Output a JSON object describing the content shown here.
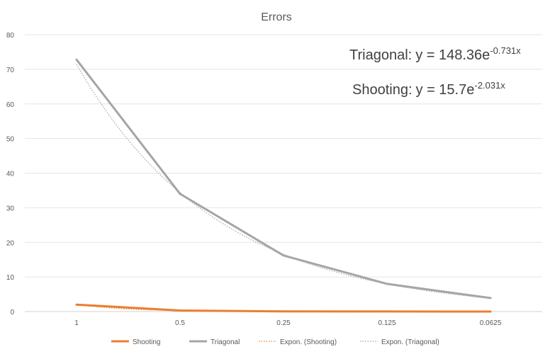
{
  "chart_data": {
    "type": "line",
    "title": "Errors",
    "xlabel": "",
    "ylabel": "",
    "categories": [
      "1",
      "0.5",
      "0.25",
      "0.125",
      "0.0625"
    ],
    "ylim": [
      0,
      80
    ],
    "yticks": [
      "0",
      "10",
      "20",
      "30",
      "40",
      "50",
      "60",
      "70",
      "80"
    ],
    "grid": true,
    "legend_position": "bottom",
    "series": [
      {
        "name": "Shooting",
        "values": [
          2.0,
          0.3,
          0.05,
          0.02,
          0.01
        ],
        "color": "#ED7D31",
        "style": "solid"
      },
      {
        "name": "Triagonal",
        "values": [
          72.8,
          34.0,
          16.2,
          8.0,
          3.9
        ],
        "color": "#A5A5A5",
        "style": "solid"
      }
    ],
    "trendlines": [
      {
        "name": "Expon. (Shooting)",
        "of": "Shooting",
        "a": 15.7,
        "b": -2.031,
        "color": "#ED7D31",
        "style": "dotted"
      },
      {
        "name": "Expon. (Triagonal)",
        "of": "Triagonal",
        "a": 148.36,
        "b": -0.731,
        "color": "#A5A5A5",
        "style": "dotted"
      }
    ],
    "annotations": [
      {
        "label": "Triagonal:",
        "equation": "y = 148.36e",
        "exponent": "-0.731x"
      },
      {
        "label": "Shooting:",
        "equation": "y = 15.7e",
        "exponent": "-2.031x"
      }
    ]
  }
}
